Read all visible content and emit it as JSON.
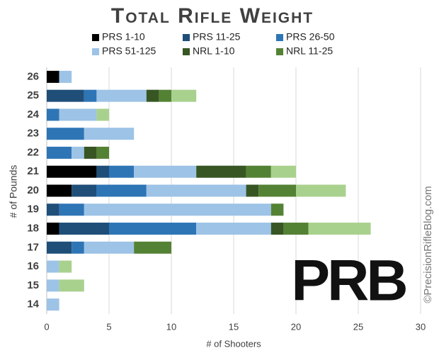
{
  "chart_data": {
    "type": "barh",
    "title": "Total Rifle Weight",
    "xlabel": "# of Shooters",
    "ylabel": "# of Pounds",
    "logo": "PRB",
    "watermark": "©PrecisionRifleBlog.com",
    "categories": [
      "26",
      "25",
      "24",
      "23",
      "22",
      "21",
      "20",
      "19",
      "18",
      "17",
      "16",
      "15",
      "14"
    ],
    "series": [
      {
        "name": "PRS 1-10",
        "color": "#000000",
        "values": [
          1,
          0,
          0,
          0,
          0,
          4,
          2,
          0,
          1,
          0,
          0,
          0,
          0
        ]
      },
      {
        "name": "PRS 11-25",
        "color": "#1f4e79",
        "values": [
          0,
          3,
          0,
          0,
          0,
          1,
          2,
          1,
          4,
          2,
          0,
          0,
          0
        ]
      },
      {
        "name": "PRS 26-50",
        "color": "#2e75b6",
        "values": [
          0,
          1,
          1,
          3,
          2,
          2,
          4,
          2,
          7,
          1,
          0,
          0,
          0
        ]
      },
      {
        "name": "PRS 51-125",
        "color": "#9dc3e6",
        "values": [
          1,
          4,
          3,
          4,
          1,
          5,
          8,
          15,
          6,
          4,
          1,
          1,
          1
        ]
      },
      {
        "name": "NRL 1-10",
        "color": "#375623",
        "values": [
          0,
          1,
          0,
          0,
          1,
          4,
          1,
          0,
          1,
          0,
          0,
          0,
          0
        ]
      },
      {
        "name": "NRL 11-25",
        "color": "#548235",
        "values": [
          0,
          1,
          0,
          0,
          1,
          2,
          3,
          1,
          2,
          3,
          0,
          0,
          0
        ]
      },
      {
        "name": null,
        "color": "#a9d18e",
        "values": [
          0,
          2,
          1,
          0,
          0,
          2,
          4,
          0,
          5,
          0,
          1,
          2,
          0
        ]
      }
    ],
    "xlim": [
      0,
      30
    ],
    "xticks": [
      0,
      5,
      10,
      15,
      20,
      25,
      30
    ],
    "grid": true
  }
}
